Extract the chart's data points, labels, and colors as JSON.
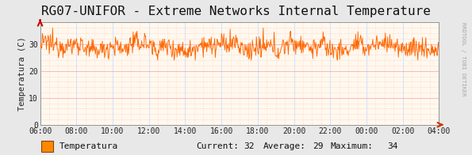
{
  "title": "RG07-UNIFOR - Extreme Networks Internal Temperature",
  "ylabel": "Temperatura (C)",
  "plot_bg_color": "#fff8ee",
  "outer_bg_color": "#e8e8e8",
  "line_color": "#ff6600",
  "grid_major_h_color": "#ff9999",
  "grid_minor_h_color": "#ffbbaa",
  "grid_major_v_color": "#ccddff",
  "grid_minor_v_color": "#ffccbb",
  "x_ticks": [
    "06:00",
    "08:00",
    "10:00",
    "12:00",
    "14:00",
    "16:00",
    "18:00",
    "20:00",
    "22:00",
    "00:00",
    "02:00",
    "04:00"
  ],
  "y_ticks": [
    0,
    10,
    20,
    30
  ],
  "ylim": [
    0,
    38
  ],
  "legend_label": "Temperatura",
  "current": 32,
  "average": 29,
  "maximum": 34,
  "legend_box_color": "#ff8800",
  "legend_box_edge": "#884400",
  "watermark": "RRDTOOL / TOBI OETIKER",
  "title_fontsize": 11.5,
  "axis_label_fontsize": 7.5,
  "tick_fontsize": 7,
  "legend_fontsize": 8,
  "num_points": 700,
  "temp_mean": 29,
  "temp_std": 2.0,
  "temp_min": 24,
  "temp_max": 36
}
